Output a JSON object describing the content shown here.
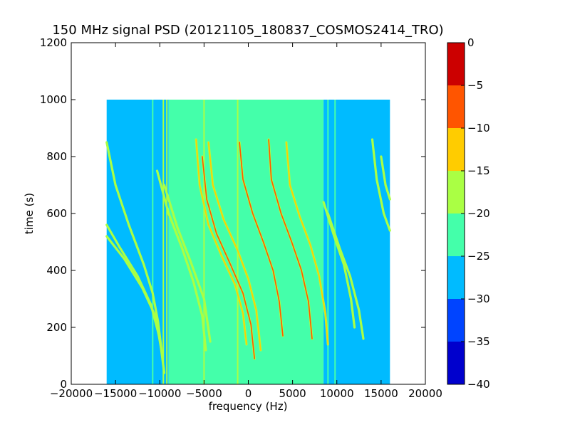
{
  "chart_data": {
    "type": "heatmap",
    "title": "150 MHz signal PSD (20121105_180837_COSMOS2414_TRO)",
    "xlabel": "frequency (Hz)",
    "ylabel": "time (s)",
    "xlim": [
      -20000,
      20000
    ],
    "ylim": [
      0,
      1200
    ],
    "xticks": [
      -20000,
      -15000,
      -10000,
      -5000,
      0,
      5000,
      10000,
      15000,
      20000
    ],
    "yticks": [
      0,
      200,
      400,
      600,
      800,
      1000,
      1200
    ],
    "data_extent": {
      "x": [
        -16000,
        16000
      ],
      "y": [
        0,
        1000
      ]
    },
    "colorbar": {
      "range": [
        -40,
        0
      ],
      "ticks": [
        0,
        -5,
        -10,
        -15,
        -20,
        -25,
        -30,
        -35,
        -40
      ],
      "levels": [
        {
          "from": -40,
          "to": -35,
          "color": "#0000cd"
        },
        {
          "from": -35,
          "to": -30,
          "color": "#0044ff"
        },
        {
          "from": -30,
          "to": -25,
          "color": "#00bbff"
        },
        {
          "from": -25,
          "to": -20,
          "color": "#44ffaa"
        },
        {
          "from": -20,
          "to": -15,
          "color": "#aaff44"
        },
        {
          "from": -15,
          "to": -10,
          "color": "#ffcc00"
        },
        {
          "from": -10,
          "to": -5,
          "color": "#ff5500"
        },
        {
          "from": -5,
          "to": 0,
          "color": "#cc0000"
        }
      ]
    },
    "background_regions": [
      {
        "x": [
          -16000,
          -9000
        ],
        "level": -27.5
      },
      {
        "x": [
          -9000,
          8500
        ],
        "level": -22.5
      },
      {
        "x": [
          8500,
          16000
        ],
        "level": -27.5
      }
    ],
    "vertical_lines": [
      {
        "x": -10800,
        "level": -22.5
      },
      {
        "x": -9600,
        "level": -17.5
      },
      {
        "x": -9200,
        "level": -17.5
      },
      {
        "x": -5000,
        "level": -17.5
      },
      {
        "x": -2800,
        "level": -22.5
      },
      {
        "x": -1200,
        "level": -17.5
      },
      {
        "x": 9000,
        "level": -22.5
      },
      {
        "x": 9800,
        "level": -22.5
      }
    ],
    "series": [
      {
        "points": [
          [
            -16000,
            850
          ],
          [
            -15000,
            700
          ],
          [
            -13500,
            560
          ],
          [
            -11800,
            420
          ],
          [
            -10800,
            320
          ],
          [
            -10200,
            220
          ],
          [
            -9800,
            120
          ]
        ],
        "level": -17.5
      },
      {
        "points": [
          [
            -16000,
            560
          ],
          [
            -14500,
            480
          ],
          [
            -12500,
            380
          ],
          [
            -11000,
            280
          ],
          [
            -10000,
            160
          ],
          [
            -9500,
            40
          ]
        ],
        "level": -17.5
      },
      {
        "points": [
          [
            -16000,
            520
          ],
          [
            -14000,
            440
          ],
          [
            -12000,
            340
          ],
          [
            -10500,
            240
          ],
          [
            -9700,
            100
          ]
        ],
        "level": -17.5
      },
      {
        "points": [
          [
            -10300,
            750
          ],
          [
            -9000,
            600
          ],
          [
            -7500,
            480
          ],
          [
            -6200,
            360
          ],
          [
            -5200,
            240
          ],
          [
            -4800,
            120
          ]
        ],
        "level": -17.5
      },
      {
        "points": [
          [
            -9500,
            700
          ],
          [
            -8000,
            550
          ],
          [
            -6500,
            430
          ],
          [
            -5000,
            300
          ],
          [
            -4300,
            150
          ]
        ],
        "level": -17.5
      },
      {
        "points": [
          [
            -5900,
            860
          ],
          [
            -5500,
            700
          ],
          [
            -4500,
            560
          ],
          [
            -3000,
            450
          ],
          [
            -1500,
            350
          ],
          [
            -600,
            250
          ],
          [
            -200,
            140
          ]
        ],
        "level": -12.5
      },
      {
        "points": [
          [
            -5200,
            800
          ],
          [
            -4700,
            650
          ],
          [
            -3600,
            530
          ],
          [
            -2000,
            420
          ],
          [
            -600,
            320
          ],
          [
            300,
            210
          ],
          [
            700,
            90
          ]
        ],
        "level": -7.5
      },
      {
        "points": [
          [
            -4500,
            850
          ],
          [
            -4000,
            700
          ],
          [
            -2800,
            580
          ],
          [
            -1200,
            470
          ],
          [
            0,
            370
          ],
          [
            900,
            260
          ],
          [
            1400,
            120
          ]
        ],
        "level": -12.5
      },
      {
        "points": [
          [
            -1000,
            850
          ],
          [
            -600,
            720
          ],
          [
            500,
            600
          ],
          [
            1700,
            500
          ],
          [
            2800,
            400
          ],
          [
            3500,
            290
          ],
          [
            3900,
            170
          ]
        ],
        "level": -7.5
      },
      {
        "points": [
          [
            2300,
            860
          ],
          [
            2600,
            720
          ],
          [
            3700,
            600
          ],
          [
            4900,
            500
          ],
          [
            6000,
            400
          ],
          [
            6800,
            290
          ],
          [
            7200,
            160
          ]
        ],
        "level": -7.5
      },
      {
        "points": [
          [
            4300,
            850
          ],
          [
            4700,
            700
          ],
          [
            5800,
            590
          ],
          [
            7000,
            490
          ],
          [
            8000,
            380
          ],
          [
            8700,
            250
          ],
          [
            9000,
            140
          ]
        ],
        "level": -12.5
      },
      {
        "points": [
          [
            8500,
            640
          ],
          [
            9700,
            520
          ],
          [
            10800,
            420
          ],
          [
            11600,
            300
          ],
          [
            12000,
            200
          ]
        ],
        "level": -17.5
      },
      {
        "points": [
          [
            9000,
            600
          ],
          [
            10300,
            480
          ],
          [
            11500,
            380
          ],
          [
            12500,
            260
          ],
          [
            13000,
            160
          ]
        ],
        "level": -17.5
      },
      {
        "points": [
          [
            14000,
            860
          ],
          [
            14500,
            720
          ],
          [
            15300,
            600
          ],
          [
            16000,
            540
          ]
        ],
        "level": -17.5
      },
      {
        "points": [
          [
            15000,
            800
          ],
          [
            15500,
            700
          ],
          [
            16000,
            650
          ]
        ],
        "level": -17.5
      }
    ]
  }
}
